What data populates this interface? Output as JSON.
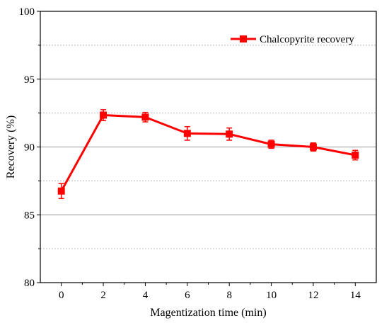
{
  "chart_data": {
    "type": "line",
    "xlabel": "Magentization time (min)",
    "ylabel": "Recovery (%)",
    "xlim": [
      -1,
      15
    ],
    "ylim": [
      80,
      100
    ],
    "x_ticks": [
      0,
      2,
      4,
      6,
      8,
      10,
      12,
      14
    ],
    "y_ticks": [
      80,
      85,
      90,
      95,
      100
    ],
    "grid": "horizontal (solid at labeled ticks, dotted at minor)",
    "legend_position": "top-right",
    "series": [
      {
        "name": "Chalcopyrite recovery",
        "color": "#ff0000",
        "marker": "square",
        "x": [
          0,
          2,
          4,
          6,
          8,
          10,
          12,
          14
        ],
        "y": [
          86.75,
          92.35,
          92.2,
          91.0,
          90.95,
          90.2,
          90.0,
          89.4
        ],
        "error": [
          0.55,
          0.4,
          0.35,
          0.5,
          0.45,
          0.3,
          0.3,
          0.35
        ]
      }
    ]
  }
}
